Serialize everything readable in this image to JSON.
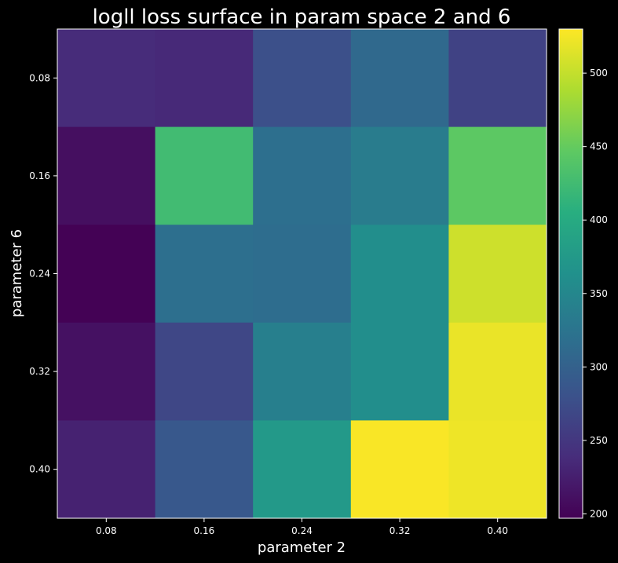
{
  "chart_data": {
    "type": "heatmap",
    "title": "logll loss surface in param space 2 and 6",
    "xlabel": "parameter 2",
    "ylabel": "parameter 6",
    "x_ticks": [
      "0.08",
      "0.16",
      "0.24",
      "0.32",
      "0.40"
    ],
    "y_ticks": [
      "0.08",
      "0.16",
      "0.24",
      "0.32",
      "0.40"
    ],
    "values": [
      [
        238,
        235,
        278,
        310,
        262
      ],
      [
        210,
        425,
        318,
        335,
        445
      ],
      [
        198,
        318,
        315,
        360,
        505
      ],
      [
        212,
        268,
        340,
        360,
        520
      ],
      [
        228,
        288,
        375,
        528,
        522
      ]
    ],
    "colorbar": {
      "range": [
        197,
        530
      ],
      "ticks": [
        "200",
        "250",
        "300",
        "350",
        "400",
        "450",
        "500"
      ],
      "colormap": "viridis"
    },
    "grid": false,
    "background": "#000000"
  }
}
